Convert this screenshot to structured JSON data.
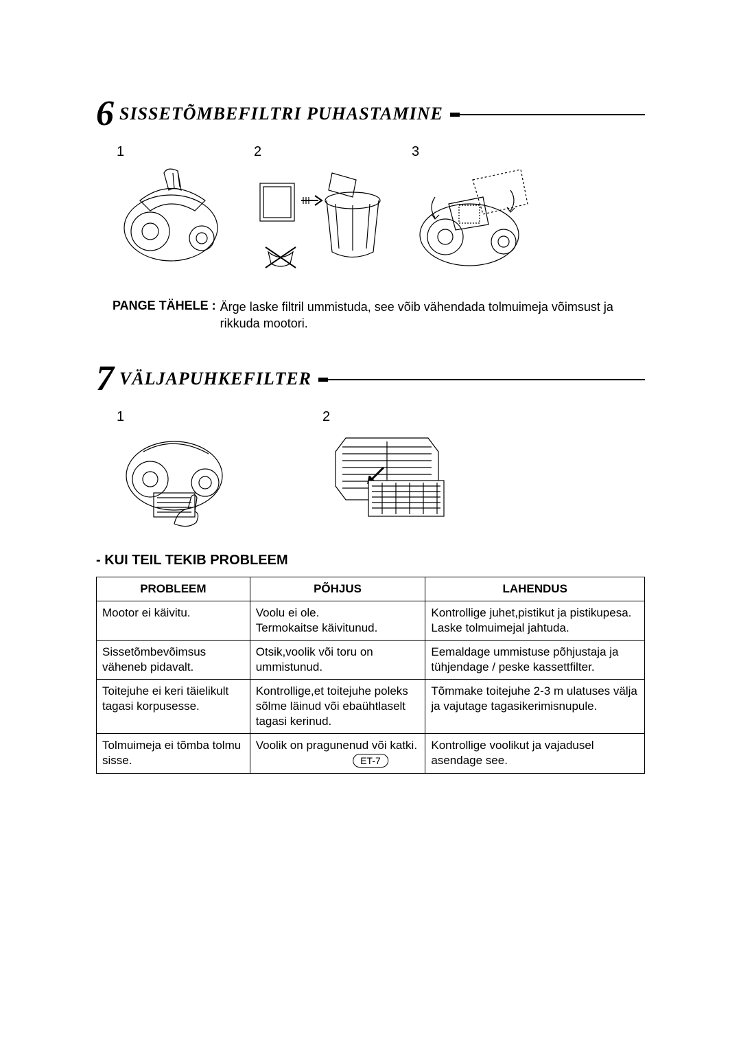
{
  "section6": {
    "number": "6",
    "title": "SISSETÕMBEFILTRI PUHASTAMINE",
    "figures": [
      "1",
      "2",
      "3"
    ],
    "note_label": "PANGE TÄHELE :",
    "note_text": "Ärge laske filtril ummistuda, see võib vähendada tolmuimeja võimsust ja rikkuda mootori."
  },
  "section7": {
    "number": "7",
    "title": "VÄLJAPUHKEFILTER",
    "figures": [
      "1",
      "2"
    ]
  },
  "trouble": {
    "heading": "- KUI TEIL TEKIB PROBLEEM",
    "columns": [
      "PROBLEEM",
      "PÕHJUS",
      "LAHENDUS"
    ],
    "col_widths": [
      "28%",
      "32%",
      "40%"
    ],
    "rows": [
      [
        "Mootor ei käivitu.",
        "Voolu ei ole.\nTermokaitse käivitunud.",
        "Kontrollige juhet,pistikut ja pistikupesa. Laske tolmuimejal jahtuda."
      ],
      [
        "Sissetõmbevõimsus väheneb pidavalt.",
        "Otsik,voolik või toru on ummistunud.",
        "Eemaldage ummistuse põhjustaja ja tühjendage / peske kassettfilter."
      ],
      [
        "Toitejuhe ei keri täielikult tagasi korpusesse.",
        "Kontrollige,et toitejuhe poleks sõlme läinud või ebaühtlaselt tagasi kerinud.",
        "Tõmmake toitejuhe 2-3 m ulatuses välja ja vajutage tagasikerimisnupule."
      ],
      [
        "Tolmuimeja ei tõmba tolmu sisse.",
        "Voolik on pragunenud või katki.",
        "Kontrollige voolikut ja vajadusel asendage see."
      ]
    ]
  },
  "page_number": "ET-7",
  "colors": {
    "text": "#000000",
    "bg": "#ffffff"
  }
}
